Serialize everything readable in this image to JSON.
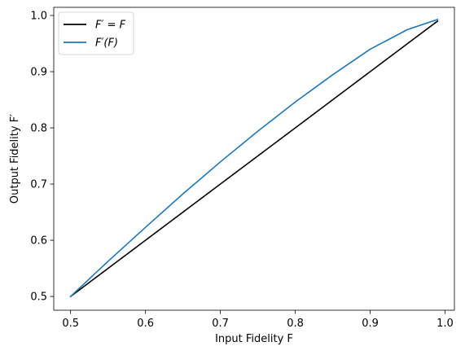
{
  "chart_data": {
    "type": "line",
    "title": "",
    "xlabel": "Input Fidelity F",
    "ylabel": "Output Fidelity F′",
    "xlim": [
      0.4775,
      1.0125
    ],
    "ylim": [
      0.4755,
      1.0145
    ],
    "xticks": [
      0.5,
      0.6,
      0.7,
      0.8,
      0.9,
      1.0
    ],
    "xtick_labels": [
      "0.5",
      "0.6",
      "0.7",
      "0.8",
      "0.9",
      "1.0"
    ],
    "yticks": [
      0.5,
      0.6,
      0.7,
      0.8,
      0.9,
      1.0
    ],
    "ytick_labels": [
      "0.5",
      "0.6",
      "0.7",
      "0.8",
      "0.9",
      "1.0"
    ],
    "grid": false,
    "legend_position": "top-left",
    "series": [
      {
        "name": "F′ = F",
        "color": "#000000",
        "x": [
          0.5,
          0.99
        ],
        "y": [
          0.5,
          0.99
        ]
      },
      {
        "name": "F′(F)",
        "color": "#1f77b4",
        "x": [
          0.5,
          0.55,
          0.6,
          0.65,
          0.7,
          0.75,
          0.8,
          0.85,
          0.9,
          0.95,
          0.99
        ],
        "y": [
          0.5,
          0.5625,
          0.623,
          0.6825,
          0.7395,
          0.794,
          0.846,
          0.8945,
          0.94,
          0.975,
          0.993
        ]
      }
    ]
  }
}
